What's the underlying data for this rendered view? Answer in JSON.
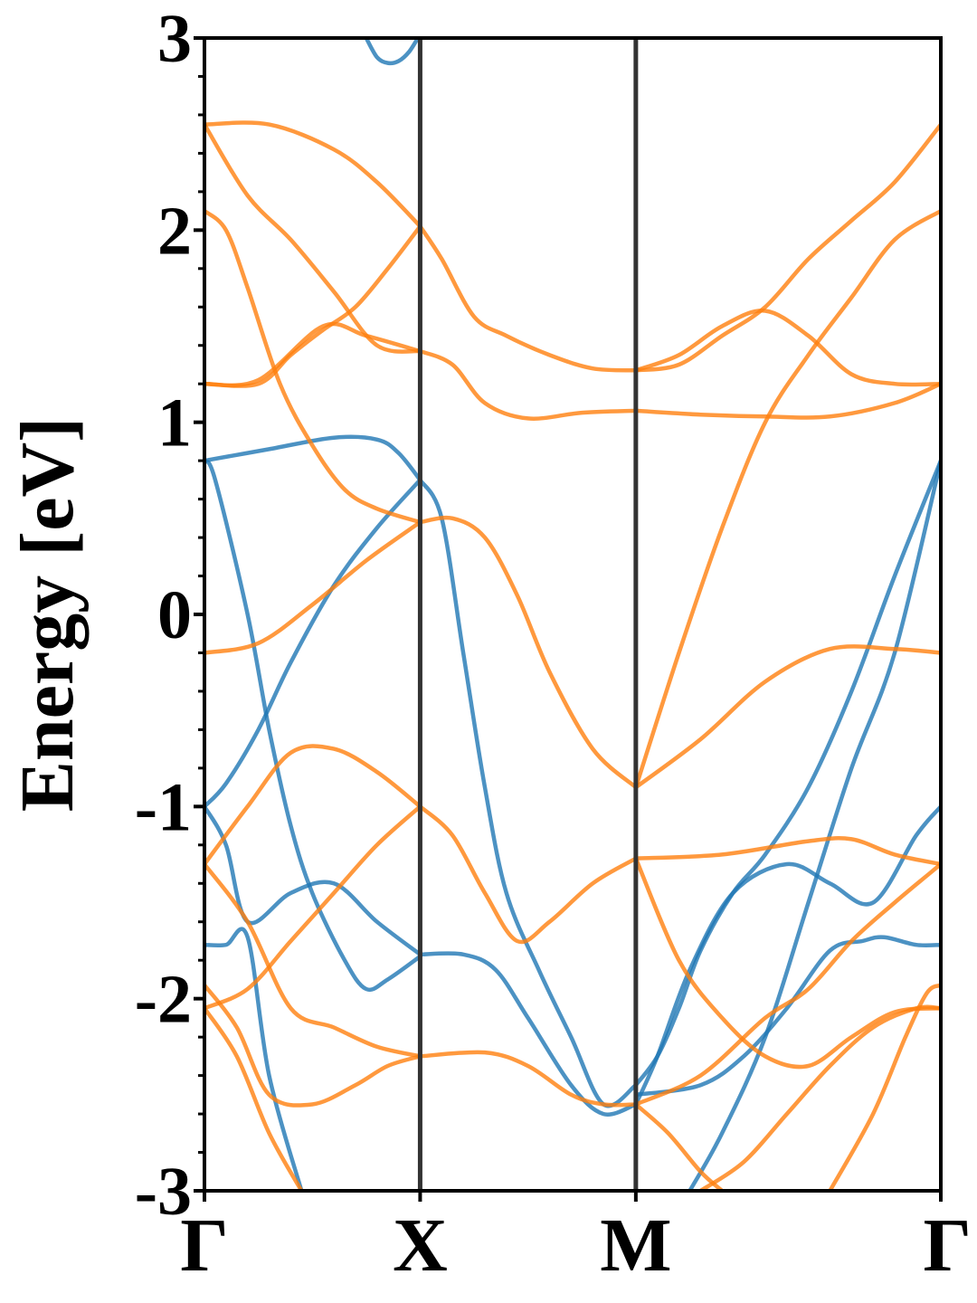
{
  "chart_data": {
    "type": "line",
    "title": "",
    "xlabel": "",
    "ylabel": "Energy [eV]",
    "ylim": [
      -3,
      3
    ],
    "yticks": [
      "-3",
      "-2",
      "-1",
      "0",
      "1",
      "2",
      "3"
    ],
    "xticks": [
      {
        "label": "Γ",
        "x": 0.0
      },
      {
        "label": "X",
        "x": 1.0
      },
      {
        "label": "M",
        "x": 2.0
      },
      {
        "label": "Γ",
        "x": 3.414
      }
    ],
    "xlim": [
      0.0,
      3.414
    ],
    "grid": false,
    "colors": {
      "blue": "#1f77b4",
      "orange": "#ff7f0e",
      "vline": "#333333"
    },
    "series": [
      {
        "color": "blue",
        "x": [
          0.75,
          0.8,
          0.85,
          0.9,
          0.95,
          1.0
        ],
        "y": [
          3.0,
          2.9,
          2.87,
          2.88,
          2.93,
          3.02
        ]
      },
      {
        "color": "blue",
        "x": [
          0.0,
          0.3,
          0.6,
          0.8,
          0.9,
          1.0
        ],
        "y": [
          0.8,
          0.86,
          0.92,
          0.91,
          0.84,
          0.7
        ]
      },
      {
        "color": "blue",
        "x": [
          0.0,
          0.1,
          0.25,
          0.4,
          0.6,
          0.8,
          1.0
        ],
        "y": [
          -1.0,
          -0.88,
          -0.6,
          -0.25,
          0.15,
          0.45,
          0.7
        ]
      },
      {
        "color": "blue",
        "x": [
          0.0,
          0.05,
          0.2,
          0.3,
          0.4,
          0.5,
          0.65,
          0.75,
          0.85,
          1.0
        ],
        "y": [
          0.8,
          0.7,
          0.0,
          -0.6,
          -1.1,
          -1.45,
          -1.8,
          -1.95,
          -1.9,
          -1.78
        ]
      },
      {
        "color": "blue",
        "x": [
          0.0,
          0.1,
          0.2,
          0.4,
          0.6,
          0.8,
          1.0
        ],
        "y": [
          -1.0,
          -1.2,
          -1.6,
          -1.45,
          -1.4,
          -1.6,
          -1.77
        ]
      },
      {
        "color": "blue",
        "x": [
          0.0,
          0.1,
          0.2,
          0.3,
          0.45
        ],
        "y": [
          -1.72,
          -1.72,
          -1.68,
          -2.4,
          -3.0
        ]
      },
      {
        "color": "blue",
        "x": [
          1.0,
          1.2,
          1.35,
          1.5,
          1.7,
          1.85,
          2.0
        ],
        "y": [
          -1.77,
          -1.77,
          -1.85,
          -2.1,
          -2.45,
          -2.6,
          -2.55
        ]
      },
      {
        "color": "blue",
        "x": [
          1.0,
          1.1,
          1.2,
          1.3,
          1.4,
          1.55,
          1.7,
          1.85,
          2.0
        ],
        "y": [
          0.7,
          0.5,
          -0.2,
          -0.9,
          -1.45,
          -1.85,
          -2.2,
          -2.55,
          -2.45
        ]
      },
      {
        "color": "blue",
        "x": [
          2.0,
          2.1,
          2.2,
          2.3,
          2.45,
          2.6,
          2.8,
          3.0,
          3.2,
          3.414
        ],
        "y": [
          -2.45,
          -2.3,
          -2.05,
          -1.75,
          -1.45,
          -1.25,
          -0.9,
          -0.4,
          0.2,
          0.8
        ]
      },
      {
        "color": "blue",
        "x": [
          2.0,
          2.1,
          2.25,
          2.45,
          2.7,
          2.9,
          3.1,
          3.3,
          3.414
        ],
        "y": [
          -2.55,
          -2.3,
          -1.85,
          -1.45,
          -1.3,
          -1.4,
          -1.5,
          -1.15,
          -1.0
        ]
      },
      {
        "color": "blue",
        "x": [
          2.0,
          2.3,
          2.5,
          2.7,
          2.9,
          3.05,
          3.15,
          3.3,
          3.414
        ],
        "y": [
          -2.5,
          -2.45,
          -2.3,
          -2.05,
          -1.75,
          -1.7,
          -1.68,
          -1.72,
          -1.72
        ]
      },
      {
        "color": "blue",
        "x": [
          2.25,
          2.4,
          2.6,
          2.8,
          3.0,
          3.2,
          3.414
        ],
        "y": [
          -3.0,
          -2.7,
          -2.2,
          -1.5,
          -0.8,
          -0.2,
          0.8
        ]
      },
      {
        "color": "orange",
        "x": [
          0.0,
          0.3,
          0.6,
          0.8,
          1.0
        ],
        "y": [
          2.55,
          2.55,
          2.42,
          2.25,
          2.02
        ]
      },
      {
        "color": "orange",
        "x": [
          0.0,
          0.2,
          0.4,
          0.6,
          0.8,
          1.0
        ],
        "y": [
          2.55,
          2.18,
          1.95,
          1.68,
          1.4,
          1.37
        ]
      },
      {
        "color": "orange",
        "x": [
          0.0,
          0.1,
          0.2,
          0.35,
          0.5,
          0.65,
          0.8,
          1.0
        ],
        "y": [
          2.1,
          2.0,
          1.7,
          1.2,
          0.88,
          0.65,
          0.55,
          0.48
        ]
      },
      {
        "color": "orange",
        "x": [
          0.0,
          0.25,
          0.4,
          0.55,
          0.7,
          0.85,
          1.0
        ],
        "y": [
          1.2,
          1.2,
          1.35,
          1.48,
          1.6,
          1.8,
          2.02
        ]
      },
      {
        "color": "orange",
        "x": [
          0.0,
          0.25,
          0.55,
          0.75,
          1.0
        ],
        "y": [
          1.2,
          1.22,
          1.5,
          1.45,
          1.37
        ]
      },
      {
        "color": "orange",
        "x": [
          0.0,
          0.25,
          0.5,
          0.75,
          1.0
        ],
        "y": [
          -0.2,
          -0.15,
          0.05,
          0.28,
          0.48
        ]
      },
      {
        "color": "orange",
        "x": [
          0.0,
          0.2,
          0.4,
          0.6,
          0.8,
          1.0
        ],
        "y": [
          -1.3,
          -1.0,
          -0.72,
          -0.7,
          -0.82,
          -1.0
        ]
      },
      {
        "color": "orange",
        "x": [
          0.0,
          0.2,
          0.4,
          0.6,
          0.8,
          1.0
        ],
        "y": [
          -1.3,
          -1.6,
          -2.05,
          -2.15,
          -2.25,
          -2.3
        ]
      },
      {
        "color": "orange",
        "x": [
          0.0,
          0.2,
          0.4,
          0.6,
          0.8,
          1.0
        ],
        "y": [
          -2.05,
          -1.95,
          -1.7,
          -1.45,
          -1.2,
          -1.0
        ]
      },
      {
        "color": "orange",
        "x": [
          0.0,
          0.15,
          0.3,
          0.5,
          0.7,
          0.85,
          1.0
        ],
        "y": [
          -1.93,
          -2.15,
          -2.5,
          -2.55,
          -2.45,
          -2.35,
          -2.3
        ]
      },
      {
        "color": "orange",
        "x": [
          0.0,
          0.15,
          0.3,
          0.45
        ],
        "y": [
          -2.05,
          -2.3,
          -2.7,
          -3.0
        ]
      },
      {
        "color": "orange",
        "x": [
          1.0,
          1.1,
          1.25,
          1.4,
          1.6,
          1.8,
          2.0
        ],
        "y": [
          2.02,
          1.85,
          1.55,
          1.45,
          1.35,
          1.28,
          1.27
        ]
      },
      {
        "color": "orange",
        "x": [
          1.0,
          1.15,
          1.3,
          1.5,
          1.75,
          2.0
        ],
        "y": [
          1.37,
          1.3,
          1.1,
          1.02,
          1.05,
          1.06
        ]
      },
      {
        "color": "orange",
        "x": [
          1.0,
          1.15,
          1.3,
          1.45,
          1.6,
          1.8,
          2.0
        ],
        "y": [
          0.48,
          0.5,
          0.4,
          0.1,
          -0.3,
          -0.7,
          -0.9
        ]
      },
      {
        "color": "orange",
        "x": [
          1.0,
          1.15,
          1.3,
          1.45,
          1.6,
          1.8,
          2.0
        ],
        "y": [
          -1.0,
          -1.15,
          -1.45,
          -1.7,
          -1.6,
          -1.4,
          -1.27
        ]
      },
      {
        "color": "orange",
        "x": [
          1.0,
          1.3,
          1.5,
          1.7,
          1.85,
          2.0
        ],
        "y": [
          -2.3,
          -2.28,
          -2.35,
          -2.5,
          -2.55,
          -2.55
        ]
      },
      {
        "color": "orange",
        "x": [
          2.0,
          2.2,
          2.4,
          2.6,
          2.8,
          3.0,
          3.2,
          3.414
        ],
        "y": [
          1.27,
          1.3,
          1.45,
          1.6,
          1.85,
          2.05,
          2.25,
          2.55
        ]
      },
      {
        "color": "orange",
        "x": [
          2.0,
          2.2,
          2.4,
          2.6,
          2.8,
          3.0,
          3.2,
          3.414
        ],
        "y": [
          1.27,
          1.35,
          1.5,
          1.58,
          1.45,
          1.25,
          1.2,
          1.2
        ]
      },
      {
        "color": "orange",
        "x": [
          2.0,
          2.3,
          2.6,
          2.9,
          3.2,
          3.414
        ],
        "y": [
          1.06,
          1.04,
          1.03,
          1.03,
          1.1,
          1.2
        ]
      },
      {
        "color": "orange",
        "x": [
          2.0,
          2.2,
          2.4,
          2.6,
          2.8,
          3.0,
          3.2,
          3.414
        ],
        "y": [
          -0.9,
          -0.2,
          0.45,
          1.0,
          1.35,
          1.65,
          1.95,
          2.1
        ]
      },
      {
        "color": "orange",
        "x": [
          2.0,
          2.3,
          2.6,
          2.9,
          3.2,
          3.414
        ],
        "y": [
          -0.9,
          -0.65,
          -0.35,
          -0.18,
          -0.18,
          -0.2
        ]
      },
      {
        "color": "orange",
        "x": [
          2.0,
          2.4,
          2.8,
          3.0,
          3.2,
          3.414
        ],
        "y": [
          -1.27,
          -1.25,
          -1.18,
          -1.17,
          -1.25,
          -1.3
        ]
      },
      {
        "color": "orange",
        "x": [
          2.0,
          2.2,
          2.4,
          2.6,
          2.8,
          3.0,
          3.2,
          3.414
        ],
        "y": [
          -1.27,
          -1.8,
          -2.1,
          -2.3,
          -2.35,
          -2.2,
          -2.07,
          -2.05
        ]
      },
      {
        "color": "orange",
        "x": [
          2.0,
          2.3,
          2.6,
          2.8,
          3.0,
          3.2,
          3.414
        ],
        "y": [
          -2.55,
          -2.4,
          -2.1,
          -1.95,
          -1.7,
          -1.5,
          -1.3
        ]
      },
      {
        "color": "orange",
        "x": [
          2.0,
          2.15,
          2.3,
          2.4
        ],
        "y": [
          -2.55,
          -2.7,
          -2.9,
          -3.0
        ]
      },
      {
        "color": "orange",
        "x": [
          2.3,
          2.5,
          2.7,
          2.9,
          3.1,
          3.3,
          3.414
        ],
        "y": [
          -3.0,
          -2.85,
          -2.6,
          -2.35,
          -2.15,
          -2.05,
          -2.05
        ]
      },
      {
        "color": "orange",
        "x": [
          2.9,
          3.1,
          3.25,
          3.35,
          3.414
        ],
        "y": [
          -3.0,
          -2.6,
          -2.2,
          -1.97,
          -1.93
        ]
      }
    ]
  }
}
